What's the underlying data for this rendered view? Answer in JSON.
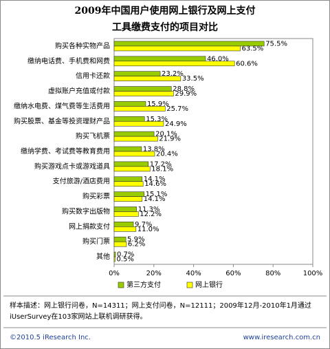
{
  "chart_data": {
    "type": "hbar",
    "title_lines": [
      "2009年中国用户使用网上银行及网上支付",
      "工具缴费支付的项目对比"
    ],
    "categories": [
      "购买各种实物产品",
      "缴纳电话费、手机费和网费",
      "信用卡还款",
      "虚拟账户充值或付款",
      "缴纳水电费、煤气费等生活费用",
      "购买股票、基金等投资理财产品",
      "购买飞机票",
      "缴纳学费、考试费等教育费用",
      "购买游戏点卡或游戏道具",
      "支付旅游/酒店费用",
      "购买彩票",
      "购买数字出版物",
      "网上捐款支付",
      "购买门票",
      "其他"
    ],
    "series": [
      {
        "name": "第三方支付",
        "color": "#99cc00",
        "values": [
          75.5,
          46.0,
          23.2,
          28.8,
          15.9,
          15.3,
          20.1,
          13.8,
          17.2,
          14.1,
          15.1,
          11.3,
          9.7,
          5.9,
          0.7
        ],
        "value_labels": [
          "75.5%",
          "46.0%",
          "23.2%",
          "28.8%",
          "15.9%",
          "15.3%",
          "20.1%",
          "13.8%",
          "17.2%",
          "14.1%",
          "15.1%",
          "11.3%",
          "9.7%",
          "5.9%",
          "0.7%"
        ]
      },
      {
        "name": "网上银行",
        "color": "#ffff00",
        "values": [
          63.5,
          60.6,
          33.5,
          29.9,
          25.7,
          24.9,
          21.9,
          20.4,
          18.1,
          14.6,
          14.1,
          12.2,
          11.0,
          6.2,
          0.5
        ],
        "value_labels": [
          "63.5%",
          "60.6%",
          "33.5%",
          "29.9%",
          "25.7%",
          "24.9%",
          "21.9%",
          "20.4%",
          "18.1%",
          "14.6%",
          "14.1%",
          "12.2%",
          "11.0%",
          "6.2%",
          "0.5%"
        ]
      }
    ],
    "xlim": [
      0,
      100
    ],
    "xticks": [
      {
        "value": 0,
        "label": "0%"
      },
      {
        "value": 20,
        "label": "20%"
      },
      {
        "value": 40,
        "label": "40%"
      },
      {
        "value": 60,
        "label": "60%"
      },
      {
        "value": 80,
        "label": "80%"
      },
      {
        "value": 100,
        "label": "100%"
      }
    ],
    "note_lines": [
      "样本描述：网上银行问卷，N=14311；网上支付问卷，N=12111；2009年12月-2010年1月通过",
      "iUserSurvey在103家网站上联机调研获得。"
    ],
    "footer_left": "©2010.5 iResearch Inc.",
    "footer_right": "www.iresearch.com.cn"
  }
}
